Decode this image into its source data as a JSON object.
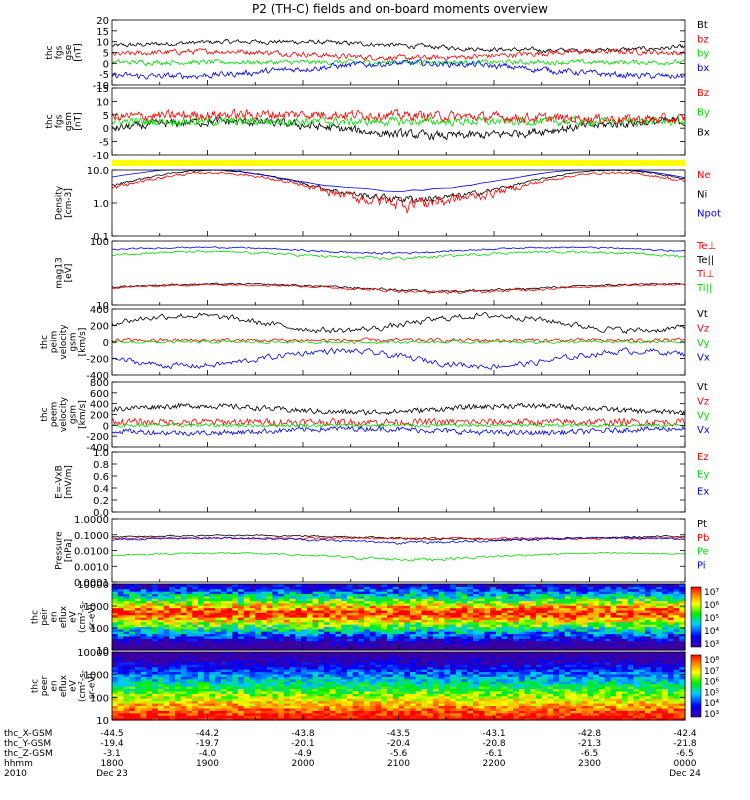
{
  "title": "P2 (TH-C) fields and on-board moments overview",
  "colors": {
    "black": "#000000",
    "red": "#ff0000",
    "green": "#00dd00",
    "blue": "#0000ff",
    "yellow": "#ffff00"
  },
  "chart_data": [
    {
      "type": "line",
      "id": "fgs_gse",
      "ylabel": [
        "thc",
        "fgs",
        "gse",
        "[nT]"
      ],
      "ylim": [
        -10,
        20
      ],
      "yticks": [
        "20",
        "15",
        "10",
        "5",
        "0",
        "-5",
        "-10"
      ],
      "legend": [
        {
          "name": "Bt",
          "color": "black"
        },
        {
          "name": "bz",
          "color": "red"
        },
        {
          "name": "by",
          "color": "green"
        },
        {
          "name": "bx",
          "color": "blue"
        }
      ]
    },
    {
      "type": "line",
      "id": "fgs_gsm",
      "ylabel": [
        "thc",
        "fgs",
        "gsm",
        "[nT]"
      ],
      "ylim": [
        -13,
        15
      ],
      "yticks": [
        "15",
        "10",
        "5",
        "0",
        "-5",
        "-10"
      ],
      "legend": [
        {
          "name": "Bz",
          "color": "red"
        },
        {
          "name": "By",
          "color": "green"
        },
        {
          "name": "Bx",
          "color": "black"
        }
      ]
    },
    {
      "type": "line",
      "id": "density",
      "ylabel": [
        "Density",
        "[cm-3]"
      ],
      "ylim": [
        0.1,
        10
      ],
      "scale": "log",
      "yticks": [
        "10.0",
        "1.0",
        "0.1"
      ],
      "legend": [
        {
          "name": "Ne",
          "color": "red"
        },
        {
          "name": "Ni",
          "color": "black"
        },
        {
          "name": "Npot",
          "color": "blue"
        }
      ]
    },
    {
      "type": "line",
      "id": "temperature",
      "ylabel": [
        "mag13",
        "[eV]"
      ],
      "ylim": [
        3,
        700
      ],
      "scale": "log",
      "yticks": [
        "100",
        "10"
      ],
      "legend": [
        {
          "name": "Te⊥",
          "color": "red"
        },
        {
          "name": "Te||",
          "color": "black"
        },
        {
          "name": "Ti⊥",
          "color": "red"
        },
        {
          "name": "Ti||",
          "color": "green"
        }
      ]
    },
    {
      "type": "line",
      "id": "peim_velocity",
      "ylabel": [
        "thc",
        "peim",
        "velocity",
        "gsm",
        "[km/s]"
      ],
      "ylim": [
        -400,
        400
      ],
      "yticks": [
        "400",
        "200",
        "0",
        "-200",
        "-400"
      ],
      "legend": [
        {
          "name": "Vt",
          "color": "black"
        },
        {
          "name": "Vz",
          "color": "red"
        },
        {
          "name": "Vy",
          "color": "green"
        },
        {
          "name": "Vx",
          "color": "blue"
        }
      ]
    },
    {
      "type": "line",
      "id": "peem_velocity",
      "ylabel": [
        "thc",
        "peem",
        "velocity",
        "gsm",
        "[km/s]"
      ],
      "ylim": [
        -400,
        800
      ],
      "yticks": [
        "800",
        "600",
        "400",
        "200",
        "0",
        "-200",
        "-400"
      ],
      "legend": [
        {
          "name": "Vt",
          "color": "black"
        },
        {
          "name": "Vz",
          "color": "red"
        },
        {
          "name": "Vy",
          "color": "green"
        },
        {
          "name": "Vx",
          "color": "blue"
        }
      ]
    },
    {
      "type": "line",
      "id": "efield",
      "ylabel": [
        "E=-VxB",
        "[mV/m]"
      ],
      "ylim": [
        0,
        1
      ],
      "yticks": [
        "1.0",
        "0.8",
        "0.6",
        "0.4",
        "0.2",
        "0.0"
      ],
      "legend": [
        {
          "name": "Ez",
          "color": "red"
        },
        {
          "name": "Ey",
          "color": "green"
        },
        {
          "name": "Ex",
          "color": "blue"
        }
      ]
    },
    {
      "type": "line",
      "id": "pressure",
      "ylabel": [
        "Pressure",
        "[nPa]"
      ],
      "ylim": [
        0.0001,
        1
      ],
      "scale": "log",
      "yticks": [
        "1.0000",
        "0.1000",
        "0.0100",
        "0.0010",
        "0.0001"
      ],
      "legend": [
        {
          "name": "Pt",
          "color": "black"
        },
        {
          "name": "Pb",
          "color": "red"
        },
        {
          "name": "Pe",
          "color": "green"
        },
        {
          "name": "Pi",
          "color": "blue"
        }
      ]
    },
    {
      "type": "heatmap",
      "id": "peir_spec",
      "ylabel": [
        "thc",
        "peir",
        "en",
        "eflux",
        "eV",
        "(cm²-s-",
        "sr-eV)"
      ],
      "ylim": [
        5,
        20000
      ],
      "scale": "log",
      "yticks": [
        "10000",
        "1000",
        "100",
        "10"
      ],
      "colorbar": [
        "10⁷",
        "10⁶",
        "10⁵",
        "10⁴",
        "10³"
      ]
    },
    {
      "type": "heatmap",
      "id": "peer_spec",
      "ylabel": [
        "thc",
        "peer",
        "en",
        "eflux",
        "eV",
        "(cm²-s-",
        "sr-eV)"
      ],
      "ylim": [
        5,
        20000
      ],
      "scale": "log",
      "yticks": [
        "10000",
        "1000",
        "100",
        "10"
      ],
      "colorbar": [
        "10⁸",
        "10⁷",
        "10⁶",
        "10⁵",
        "10⁴",
        "10³"
      ]
    }
  ],
  "xaxis": {
    "rows": [
      {
        "label": "thc_X-GSM",
        "values": [
          "-44.5",
          "-44.2",
          "-43.8",
          "-43.5",
          "-43.1",
          "-42.8",
          "-42.4"
        ]
      },
      {
        "label": "thc_Y-GSM",
        "values": [
          "-19.4",
          "-19.7",
          "-20.1",
          "-20.4",
          "-20.8",
          "-21.3",
          "-21.8"
        ]
      },
      {
        "label": "thc_Z-GSM",
        "values": [
          "-3.1",
          "-4.0",
          "-4.9",
          "-5.6",
          "-6.1",
          "-6.5",
          "-6.5"
        ]
      },
      {
        "label": "hhmm",
        "values": [
          "1800",
          "1900",
          "2000",
          "2100",
          "2200",
          "2300",
          "0000"
        ]
      }
    ],
    "year": "2010",
    "dates": [
      {
        "text": "Dec 23"
      },
      {
        "text": "Dec 24"
      }
    ]
  }
}
